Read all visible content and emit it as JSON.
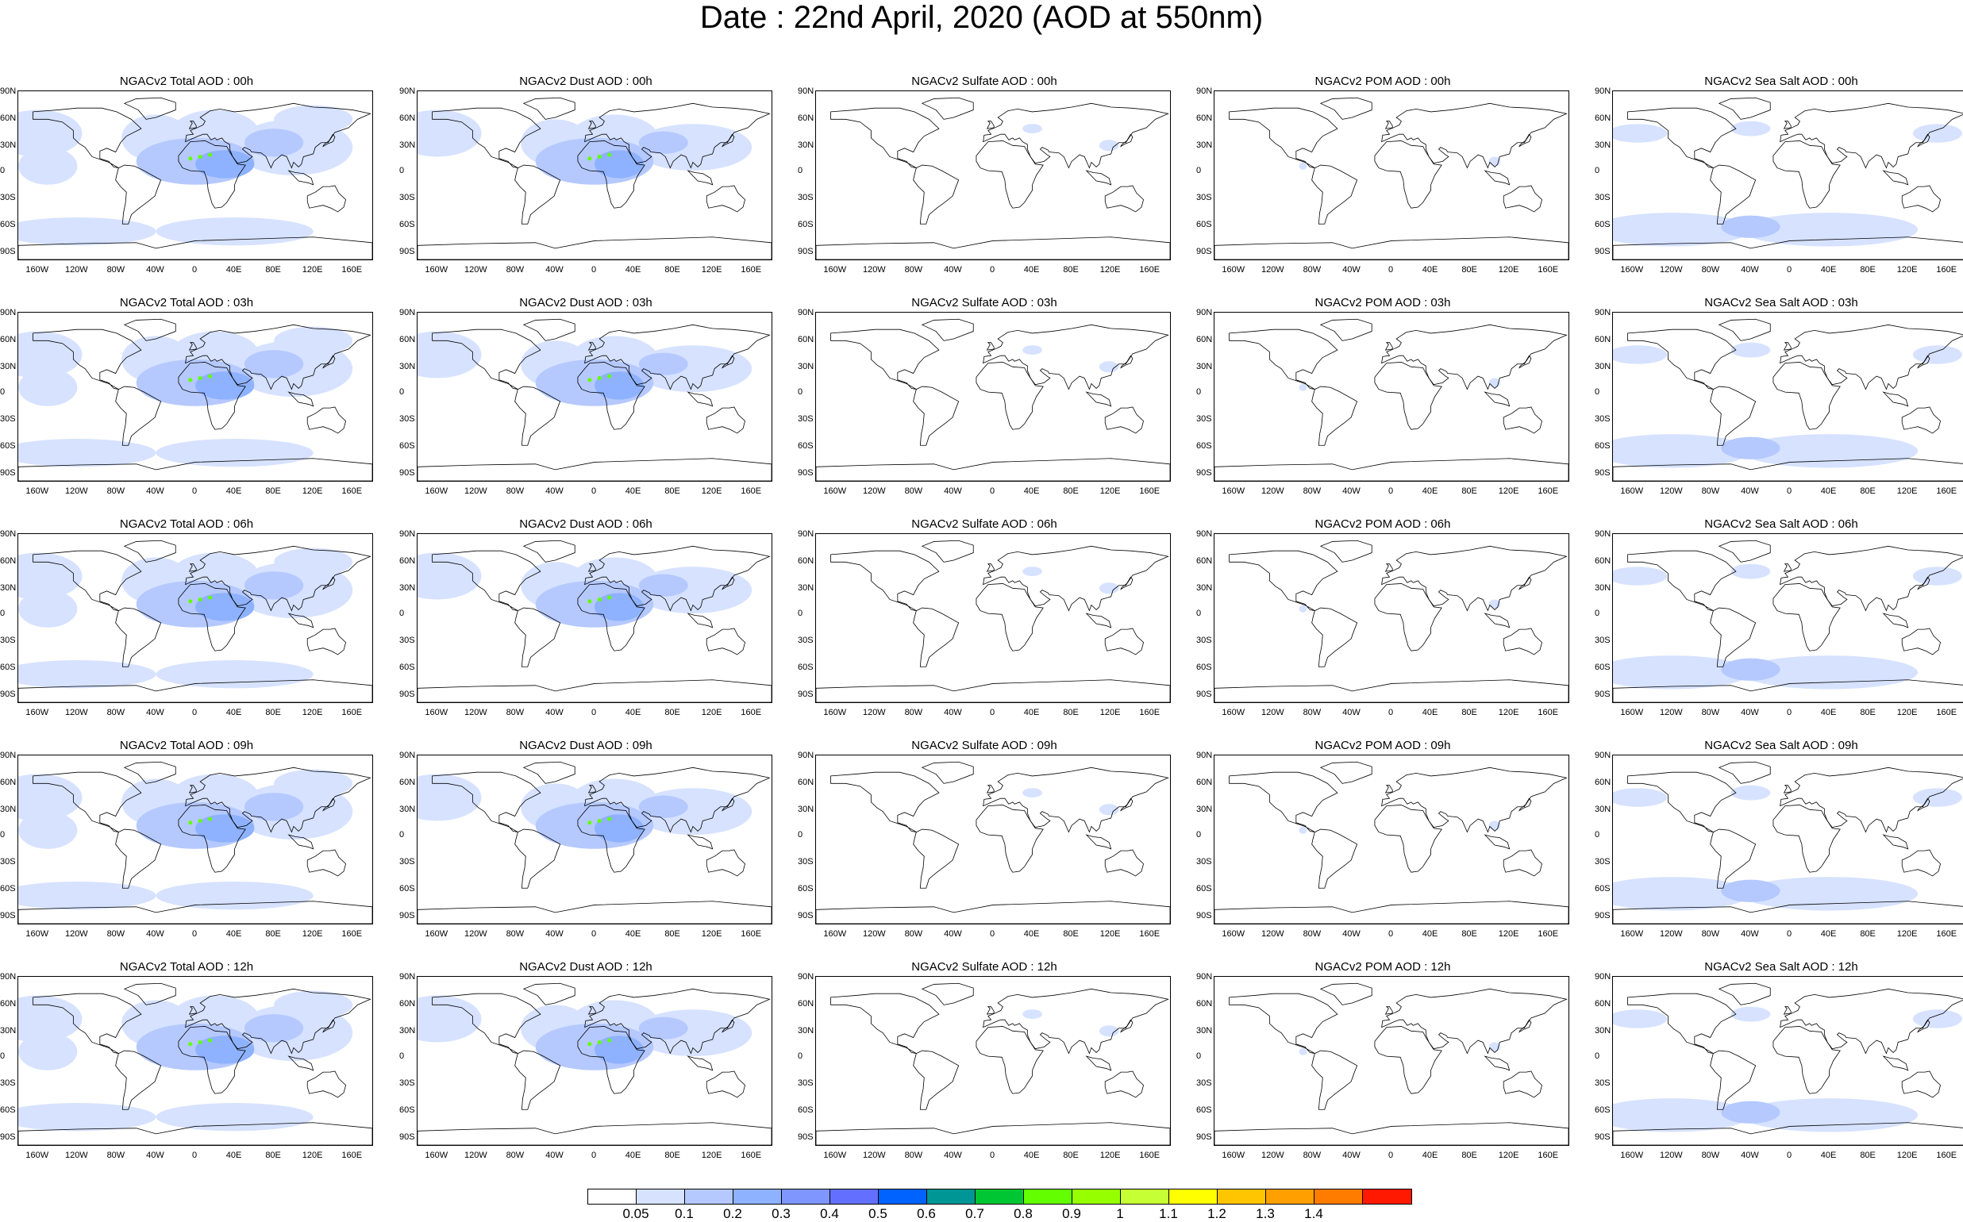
{
  "title": "Date : 22nd April, 2020 (AOD at 550nm)",
  "panels": [
    [
      "NGACv2 Total AOD : 00h",
      "NGACv2 Dust AOD : 00h",
      "NGACv2 Sulfate AOD : 00h",
      "NGACv2 POM AOD : 00h",
      "NGACv2 Sea Salt AOD : 00h"
    ],
    [
      "NGACv2 Total AOD : 03h",
      "NGACv2 Dust AOD : 03h",
      "NGACv2 Sulfate AOD : 03h",
      "NGACv2 POM AOD : 03h",
      "NGACv2 Sea Salt AOD : 03h"
    ],
    [
      "NGACv2 Total AOD : 06h",
      "NGACv2 Dust AOD : 06h",
      "NGACv2 Sulfate AOD : 06h",
      "NGACv2 POM AOD : 06h",
      "NGACv2 Sea Salt AOD : 06h"
    ],
    [
      "NGACv2 Total AOD : 09h",
      "NGACv2 Dust AOD : 09h",
      "NGACv2 Sulfate AOD : 09h",
      "NGACv2 POM AOD : 09h",
      "NGACv2 Sea Salt  AOD : 09h"
    ],
    [
      "NGACv2 Total AOD :  12h",
      "NGACv2 Dust AOD : 12h",
      "NGACv2 Sulfate AOD : 12h",
      "NGACv2 POM  AOD : 12h",
      "NGACv2 Sea Salt  AOD : 12h"
    ]
  ],
  "lat_labels": [
    "90N",
    "60N",
    "30N",
    "0",
    "30S",
    "60S",
    "90S"
  ],
  "lon_labels": [
    "160W",
    "120W",
    "80W",
    "40W",
    "0",
    "40E",
    "80E",
    "120E",
    "160E"
  ],
  "colorbar": {
    "colors": [
      "#ffffff",
      "#d6e2ff",
      "#b5c9ff",
      "#8eb2ff",
      "#7f96ff",
      "#6370ff",
      "#0063ff",
      "#009696",
      "#00c633",
      "#63ff00",
      "#96ff00",
      "#c6ff33",
      "#ffff00",
      "#ffc600",
      "#ffa000",
      "#ff7c00",
      "#ff1900"
    ],
    "labels": [
      "0.05",
      "0.1",
      "0.2",
      "0.3",
      "0.4",
      "0.5",
      "0.6",
      "0.7",
      "0.8",
      "0.9",
      "1",
      "1.1",
      "1.2",
      "1.3",
      "1.4"
    ]
  },
  "colors": {
    "light_aod": "#d6e2ff",
    "mid_aod": "#b5c9ff",
    "high_aod": "#8eb2ff",
    "peak_aod": "#63ff00"
  }
}
